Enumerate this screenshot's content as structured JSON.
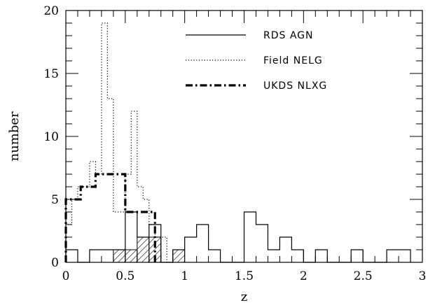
{
  "chart_data": {
    "type": "histogram",
    "xlabel": "z",
    "ylabel": "number",
    "xlim": [
      0,
      3
    ],
    "ylim": [
      0,
      20
    ],
    "x_ticks": [
      "0",
      "0.5",
      "1",
      "1.5",
      "2",
      "2.5",
      "3"
    ],
    "y_ticks": [
      "0",
      "5",
      "10",
      "15",
      "20"
    ],
    "legend_position": "top-right",
    "series": [
      {
        "name": "RDS AGN",
        "style": "solid",
        "bin_width": 0.1,
        "bins": [
          {
            "x0": 0.0,
            "x1": 0.1,
            "count": 1
          },
          {
            "x0": 0.1,
            "x1": 0.2,
            "count": 0
          },
          {
            "x0": 0.2,
            "x1": 0.3,
            "count": 1
          },
          {
            "x0": 0.3,
            "x1": 0.4,
            "count": 1
          },
          {
            "x0": 0.4,
            "x1": 0.5,
            "count": 1
          },
          {
            "x0": 0.5,
            "x1": 0.6,
            "count": 4
          },
          {
            "x0": 0.6,
            "x1": 0.7,
            "count": 2
          },
          {
            "x0": 0.7,
            "x1": 0.8,
            "count": 3
          },
          {
            "x0": 0.8,
            "x1": 0.9,
            "count": 0
          },
          {
            "x0": 0.9,
            "x1": 1.0,
            "count": 1
          },
          {
            "x0": 1.0,
            "x1": 1.1,
            "count": 2
          },
          {
            "x0": 1.1,
            "x1": 1.2,
            "count": 3
          },
          {
            "x0": 1.2,
            "x1": 1.3,
            "count": 1
          },
          {
            "x0": 1.3,
            "x1": 1.4,
            "count": 0
          },
          {
            "x0": 1.4,
            "x1": 1.5,
            "count": 0
          },
          {
            "x0": 1.5,
            "x1": 1.6,
            "count": 4
          },
          {
            "x0": 1.6,
            "x1": 1.7,
            "count": 3
          },
          {
            "x0": 1.7,
            "x1": 1.8,
            "count": 1
          },
          {
            "x0": 1.8,
            "x1": 1.9,
            "count": 2
          },
          {
            "x0": 1.9,
            "x1": 2.0,
            "count": 1
          },
          {
            "x0": 2.0,
            "x1": 2.1,
            "count": 0
          },
          {
            "x0": 2.1,
            "x1": 2.2,
            "count": 1
          },
          {
            "x0": 2.2,
            "x1": 2.3,
            "count": 0
          },
          {
            "x0": 2.3,
            "x1": 2.4,
            "count": 0
          },
          {
            "x0": 2.4,
            "x1": 2.5,
            "count": 1
          },
          {
            "x0": 2.5,
            "x1": 2.6,
            "count": 0
          },
          {
            "x0": 2.6,
            "x1": 2.7,
            "count": 0
          },
          {
            "x0": 2.7,
            "x1": 2.8,
            "count": 1
          },
          {
            "x0": 2.8,
            "x1": 2.9,
            "count": 1
          }
        ]
      },
      {
        "name": "Field NELG",
        "style": "dotted",
        "bin_width": 0.05,
        "bins": [
          {
            "x0": 0.0,
            "x1": 0.05,
            "count": 3
          },
          {
            "x0": 0.05,
            "x1": 0.1,
            "count": 5
          },
          {
            "x0": 0.1,
            "x1": 0.15,
            "count": 6
          },
          {
            "x0": 0.15,
            "x1": 0.2,
            "count": 6
          },
          {
            "x0": 0.2,
            "x1": 0.25,
            "count": 8
          },
          {
            "x0": 0.25,
            "x1": 0.3,
            "count": 7
          },
          {
            "x0": 0.3,
            "x1": 0.35,
            "count": 19
          },
          {
            "x0": 0.35,
            "x1": 0.4,
            "count": 13
          },
          {
            "x0": 0.4,
            "x1": 0.45,
            "count": 4
          },
          {
            "x0": 0.45,
            "x1": 0.5,
            "count": 4
          },
          {
            "x0": 0.5,
            "x1": 0.55,
            "count": 7
          },
          {
            "x0": 0.55,
            "x1": 0.6,
            "count": 12
          },
          {
            "x0": 0.6,
            "x1": 0.65,
            "count": 6
          },
          {
            "x0": 0.65,
            "x1": 0.7,
            "count": 5
          },
          {
            "x0": 0.7,
            "x1": 0.75,
            "count": 3
          },
          {
            "x0": 0.75,
            "x1": 0.8,
            "count": 2
          },
          {
            "x0": 0.8,
            "x1": 0.85,
            "count": 2
          },
          {
            "x0": 0.85,
            "x1": 0.9,
            "count": 0
          }
        ]
      },
      {
        "name": "UKDS NLXG",
        "style": "dash-dot",
        "bin_width": 0.125,
        "bins": [
          {
            "x0": 0.0,
            "x1": 0.125,
            "count": 5
          },
          {
            "x0": 0.125,
            "x1": 0.25,
            "count": 6
          },
          {
            "x0": 0.25,
            "x1": 0.375,
            "count": 7
          },
          {
            "x0": 0.375,
            "x1": 0.5,
            "count": 7
          },
          {
            "x0": 0.5,
            "x1": 0.625,
            "count": 4
          },
          {
            "x0": 0.625,
            "x1": 0.75,
            "count": 4
          }
        ]
      },
      {
        "style": "hatched",
        "bin_width": 0.1,
        "bins": [
          {
            "x0": 0.4,
            "x1": 0.5,
            "count": 1
          },
          {
            "x0": 0.5,
            "x1": 0.6,
            "count": 1
          },
          {
            "x0": 0.6,
            "x1": 0.7,
            "count": 2
          },
          {
            "x0": 0.7,
            "x1": 0.8,
            "count": 2
          },
          {
            "x0": 0.9,
            "x1": 1.0,
            "count": 1
          }
        ]
      }
    ]
  }
}
